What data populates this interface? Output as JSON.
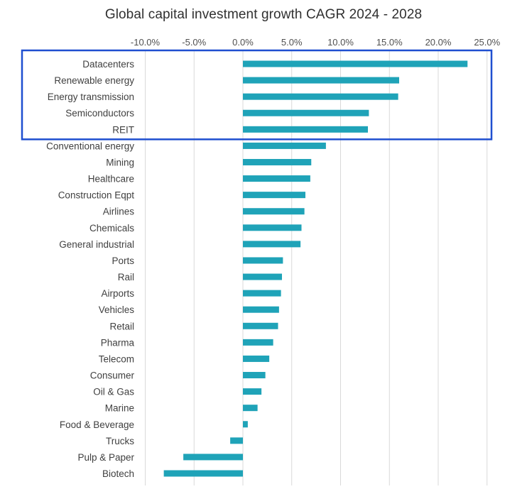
{
  "chart_data": {
    "type": "bar",
    "orientation": "horizontal",
    "title": "Global capital investment growth CAGR 2024 - 2028",
    "xlabel": "",
    "ylabel": "",
    "xlim": [
      -10.0,
      25.0
    ],
    "tick_values": [
      -10,
      -5,
      0,
      5,
      10,
      15,
      20,
      25
    ],
    "tick_labels": [
      "-10.0%",
      "-5.0%",
      "0.0%",
      "5.0%",
      "10.0%",
      "15.0%",
      "20.0%",
      "25.0%"
    ],
    "grid": true,
    "bar_color": "#1FA3B8",
    "highlight_color": "#1F4FD0",
    "highlighted_categories": [
      "Datacenters",
      "Renewable energy",
      "Energy transmission",
      "Semiconductors",
      "REIT"
    ],
    "categories": [
      "Datacenters",
      "Renewable energy",
      "Energy transmission",
      "Semiconductors",
      "REIT",
      "Conventional energy",
      "Mining",
      "Healthcare",
      "Construction Eqpt",
      "Airlines",
      "Chemicals",
      "General industrial",
      "Ports",
      "Rail",
      "Airports",
      "Vehicles",
      "Retail",
      "Pharma",
      "Telecom",
      "Consumer",
      "Oil & Gas",
      "Marine",
      "Food & Beverage",
      "Trucks",
      "Pulp & Paper",
      "Biotech"
    ],
    "values": [
      23.0,
      16.0,
      15.9,
      12.9,
      12.8,
      8.5,
      7.0,
      6.9,
      6.4,
      6.3,
      6.0,
      5.9,
      4.1,
      4.0,
      3.9,
      3.7,
      3.6,
      3.1,
      2.7,
      2.3,
      1.9,
      1.5,
      0.5,
      -1.3,
      -6.1,
      -8.1
    ]
  }
}
